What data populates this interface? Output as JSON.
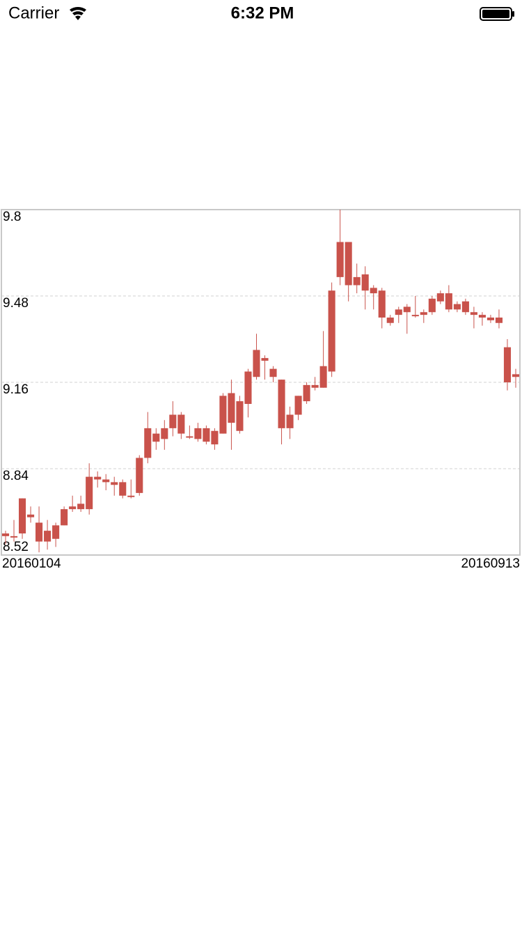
{
  "status_bar": {
    "carrier": "Carrier",
    "time": "6:32 PM"
  },
  "chart_data": {
    "type": "candlestick",
    "categories": [
      "20160104",
      null,
      null,
      null,
      null,
      null,
      null,
      null,
      null,
      null,
      null,
      null,
      null,
      null,
      null,
      null,
      null,
      null,
      null,
      null,
      null,
      null,
      null,
      null,
      null,
      null,
      null,
      null,
      null,
      null,
      null,
      null,
      null,
      null,
      null,
      null,
      null,
      null,
      null,
      null,
      null,
      null,
      null,
      null,
      null,
      null,
      null,
      null,
      null,
      null,
      null,
      null,
      null,
      null,
      null,
      null,
      null,
      null,
      null,
      null,
      null,
      "20160913"
    ],
    "open": [
      8.59,
      8.59,
      8.6,
      8.67,
      8.64,
      8.57,
      8.58,
      8.63,
      8.69,
      8.69,
      8.69,
      8.81,
      8.8,
      8.79,
      8.79,
      8.74,
      8.75,
      8.88,
      8.97,
      8.95,
      8.99,
      9.04,
      8.96,
      8.99,
      8.99,
      8.98,
      8.97,
      9.12,
      8.98,
      9.08,
      9.18,
      9.25,
      9.21,
      9.17,
      8.99,
      9.04,
      9.09,
      9.14,
      9.14,
      9.2,
      9.55,
      9.68,
      9.55,
      9.5,
      9.51,
      9.5,
      9.38,
      9.41,
      9.42,
      9.41,
      9.42,
      9.42,
      9.46,
      9.49,
      9.45,
      9.46,
      9.42,
      9.41,
      9.4,
      9.4,
      9.29,
      9.19
    ],
    "high": [
      8.61,
      8.65,
      8.73,
      8.7,
      8.7,
      8.65,
      8.64,
      8.7,
      8.74,
      8.74,
      8.86,
      8.83,
      8.82,
      8.81,
      8.8,
      8.8,
      8.89,
      9.05,
      8.99,
      9.02,
      9.09,
      9.05,
      9.0,
      9.01,
      9.0,
      8.99,
      9.12,
      9.17,
      9.11,
      9.21,
      9.34,
      9.26,
      9.22,
      9.17,
      9.07,
      9.11,
      9.16,
      9.18,
      9.35,
      9.53,
      9.8,
      9.68,
      9.6,
      9.59,
      9.52,
      9.51,
      9.41,
      9.44,
      9.45,
      9.48,
      9.43,
      9.48,
      9.5,
      9.52,
      9.46,
      9.47,
      9.44,
      9.42,
      9.41,
      9.43,
      9.32,
      9.21
    ],
    "low": [
      8.56,
      8.57,
      8.58,
      8.64,
      8.53,
      8.54,
      8.55,
      8.63,
      8.68,
      8.68,
      8.67,
      8.77,
      8.76,
      8.74,
      8.73,
      8.73,
      8.74,
      8.86,
      8.91,
      8.91,
      8.96,
      8.95,
      8.95,
      8.94,
      8.93,
      8.91,
      8.97,
      8.91,
      8.97,
      9.03,
      9.17,
      9.17,
      9.16,
      8.93,
      8.95,
      9.02,
      9.08,
      9.13,
      9.14,
      9.18,
      9.52,
      9.46,
      9.49,
      9.43,
      9.43,
      9.36,
      9.37,
      9.38,
      9.34,
      9.4,
      9.38,
      9.41,
      9.45,
      9.42,
      9.42,
      9.41,
      9.36,
      9.37,
      9.38,
      9.36,
      9.13,
      9.14
    ],
    "close": [
      8.6,
      8.59,
      8.73,
      8.66,
      8.57,
      8.61,
      8.63,
      8.69,
      8.7,
      8.71,
      8.81,
      8.8,
      8.79,
      8.78,
      8.74,
      8.74,
      8.88,
      8.99,
      8.94,
      8.99,
      9.04,
      8.97,
      8.96,
      8.95,
      8.94,
      8.93,
      9.11,
      9.01,
      9.09,
      9.2,
      9.28,
      9.24,
      9.18,
      8.99,
      9.04,
      9.11,
      9.15,
      9.15,
      9.22,
      9.5,
      9.68,
      9.52,
      9.52,
      9.56,
      9.49,
      9.4,
      9.4,
      9.43,
      9.44,
      9.41,
      9.41,
      9.47,
      9.49,
      9.43,
      9.43,
      9.42,
      9.41,
      9.4,
      9.39,
      9.38,
      9.16,
      9.18
    ],
    "color": "#c9524b",
    "ylim": [
      8.52,
      9.8
    ],
    "yticks": [
      9.8,
      9.48,
      9.16,
      8.84,
      8.52
    ],
    "grid": true
  }
}
